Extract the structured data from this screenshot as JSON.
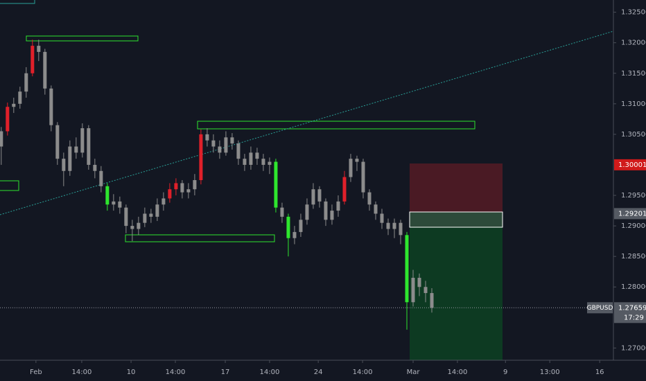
{
  "chart_data": {
    "type": "candlestick",
    "symbol": "GBPUSD",
    "countdown": "17:29",
    "open": [
      1.303,
      1.3055,
      1.3095,
      1.31,
      1.312,
      1.315,
      1.3195,
      1.3185,
      1.3125,
      1.3065,
      1.301,
      1.299,
      1.303,
      1.302,
      1.306,
      1.3,
      1.299,
      1.2965,
      1.2935,
      1.294,
      1.293,
      1.29,
      1.2895,
      1.2905,
      1.292,
      1.2915,
      1.2935,
      1.2945,
      1.296,
      1.297,
      1.2955,
      1.296,
      1.2975,
      1.305,
      1.304,
      1.303,
      1.302,
      1.3045,
      1.3035,
      1.301,
      1.3,
      1.302,
      1.301,
      1.3,
      1.3005,
      1.293,
      1.2915,
      1.288,
      1.289,
      1.291,
      1.2935,
      1.296,
      1.294,
      1.291,
      1.2925,
      1.294,
      1.298,
      1.301,
      1.3005,
      1.2955,
      1.2935,
      1.292,
      1.2905,
      1.2895,
      1.2905,
      1.2885,
      1.2775,
      1.2815,
      1.28,
      1.279
    ],
    "high": [
      1.3062,
      1.3102,
      1.311,
      1.3128,
      1.316,
      1.3205,
      1.3205,
      1.319,
      1.313,
      1.307,
      1.302,
      1.304,
      1.3045,
      1.3068,
      1.3065,
      1.301,
      1.2998,
      1.297,
      1.2952,
      1.2948,
      1.2935,
      1.291,
      1.2915,
      1.293,
      1.2928,
      1.2945,
      1.2955,
      1.297,
      1.2978,
      1.2975,
      1.297,
      1.2985,
      1.3058,
      1.306,
      1.305,
      1.304,
      1.3055,
      1.3052,
      1.304,
      1.3018,
      1.303,
      1.3028,
      1.3018,
      1.3012,
      1.301,
      1.2938,
      1.292,
      1.29,
      1.292,
      1.2945,
      1.297,
      1.2965,
      1.2945,
      1.2935,
      1.295,
      1.299,
      1.3018,
      1.3015,
      1.301,
      1.296,
      1.294,
      1.2928,
      1.2912,
      1.2912,
      1.291,
      1.289,
      1.2828,
      1.2822,
      1.281,
      1.2798
    ],
    "low": [
      1.3,
      1.3048,
      1.3085,
      1.3092,
      1.311,
      1.3145,
      1.317,
      1.3115,
      1.3055,
      1.3,
      1.2965,
      1.2982,
      1.301,
      1.3012,
      1.2992,
      1.2978,
      1.2955,
      1.2925,
      1.2925,
      1.292,
      1.2888,
      1.2875,
      1.2885,
      1.2898,
      1.2905,
      1.2908,
      1.2925,
      1.2938,
      1.295,
      1.2945,
      1.2945,
      1.295,
      1.2968,
      1.303,
      1.302,
      1.301,
      1.3015,
      1.3025,
      1.3,
      1.299,
      1.2992,
      1.3,
      1.299,
      1.2985,
      1.2922,
      1.2905,
      1.285,
      1.287,
      1.2882,
      1.2902,
      1.2928,
      1.293,
      1.29,
      1.2902,
      1.2915,
      1.2935,
      1.2972,
      1.299,
      1.2945,
      1.2925,
      1.291,
      1.2895,
      1.2885,
      1.288,
      1.287,
      1.273,
      1.2768,
      1.2785,
      1.2775,
      1.2758
    ],
    "close": [
      1.3055,
      1.3095,
      1.31,
      1.312,
      1.315,
      1.3195,
      1.3185,
      1.3125,
      1.3065,
      1.301,
      1.299,
      1.303,
      1.302,
      1.306,
      1.3,
      1.299,
      1.2965,
      1.2935,
      1.294,
      1.293,
      1.29,
      1.2895,
      1.2905,
      1.292,
      1.2915,
      1.2935,
      1.2945,
      1.296,
      1.297,
      1.2955,
      1.296,
      1.2975,
      1.305,
      1.304,
      1.303,
      1.302,
      1.3045,
      1.3035,
      1.301,
      1.3,
      1.302,
      1.301,
      1.3,
      1.3005,
      1.293,
      1.2915,
      1.288,
      1.289,
      1.291,
      1.2935,
      1.296,
      1.294,
      1.291,
      1.2925,
      1.294,
      1.298,
      1.301,
      1.3005,
      1.2955,
      1.2935,
      1.292,
      1.2905,
      1.2895,
      1.2905,
      1.2885,
      1.2775,
      1.2815,
      1.28,
      1.279,
      1.2766
    ],
    "colors": [
      "#8c8c8c",
      "#e0202a",
      "#8c8c8c",
      "#8c8c8c",
      "#8c8c8c",
      "#e0202a",
      "#8c8c8c",
      "#8c8c8c",
      "#8c8c8c",
      "#8c8c8c",
      "#8c8c8c",
      "#8c8c8c",
      "#8c8c8c",
      "#8c8c8c",
      "#8c8c8c",
      "#8c8c8c",
      "#8c8c8c",
      "#2ee62e",
      "#8c8c8c",
      "#8c8c8c",
      "#8c8c8c",
      "#8c8c8c",
      "#8c8c8c",
      "#8c8c8c",
      "#8c8c8c",
      "#8c8c8c",
      "#8c8c8c",
      "#e0202a",
      "#e0202a",
      "#8c8c8c",
      "#8c8c8c",
      "#8c8c8c",
      "#e0202a",
      "#8c8c8c",
      "#8c8c8c",
      "#8c8c8c",
      "#8c8c8c",
      "#8c8c8c",
      "#8c8c8c",
      "#8c8c8c",
      "#8c8c8c",
      "#8c8c8c",
      "#8c8c8c",
      "#8c8c8c",
      "#2ee62e",
      "#8c8c8c",
      "#2ee62e",
      "#8c8c8c",
      "#8c8c8c",
      "#8c8c8c",
      "#8c8c8c",
      "#8c8c8c",
      "#8c8c8c",
      "#8c8c8c",
      "#8c8c8c",
      "#e0202a",
      "#8c8c8c",
      "#8c8c8c",
      "#8c8c8c",
      "#8c8c8c",
      "#8c8c8c",
      "#8c8c8c",
      "#8c8c8c",
      "#8c8c8c",
      "#8c8c8c",
      "#2ee62e",
      "#8c8c8c",
      "#8c8c8c",
      "#8c8c8c",
      "#8c8c8c"
    ],
    "xlim": [
      -0.2,
      98.1
    ],
    "xticks": [
      {
        "value": 5.56,
        "label": "Feb"
      },
      {
        "value": 12.9,
        "label": "14:00"
      },
      {
        "value": 20.8,
        "label": "10"
      },
      {
        "value": 27.9,
        "label": "14:00"
      },
      {
        "value": 35.9,
        "label": "17"
      },
      {
        "value": 43,
        "label": "14:00"
      },
      {
        "value": 50.8,
        "label": "24"
      },
      {
        "value": 57.9,
        "label": "14:00"
      },
      {
        "value": 66,
        "label": "Mar"
      },
      {
        "value": 73.1,
        "label": "14:00"
      },
      {
        "value": 80.8,
        "label": "9"
      },
      {
        "value": 87.9,
        "label": "13:00"
      },
      {
        "value": 95.9,
        "label": "16"
      }
    ],
    "ylim": [
      1.268,
      1.327
    ],
    "yticks": [
      {
        "value": 1.325,
        "label": "1.32500"
      },
      {
        "value": 1.32,
        "label": "1.32000"
      },
      {
        "value": 1.315,
        "label": "1.31500"
      },
      {
        "value": 1.31,
        "label": "1.31000"
      },
      {
        "value": 1.305,
        "label": "1.30500"
      },
      {
        "value": 1.295,
        "label": "1.29500"
      },
      {
        "value": 1.29,
        "label": "1.29000"
      },
      {
        "value": 1.285,
        "label": "1.28500"
      },
      {
        "value": 1.28,
        "label": "1.28000"
      },
      {
        "value": 1.27,
        "label": "1.27000"
      }
    ],
    "price_tags": [
      {
        "value": 1.30001,
        "label": "1.30001",
        "color": "#d01a1a"
      },
      {
        "value": 1.29201,
        "label": "1.29201",
        "color": "#555a63"
      }
    ],
    "last_price": {
      "value": 1.27659,
      "label": "1.27659",
      "color": "#555a63"
    }
  }
}
